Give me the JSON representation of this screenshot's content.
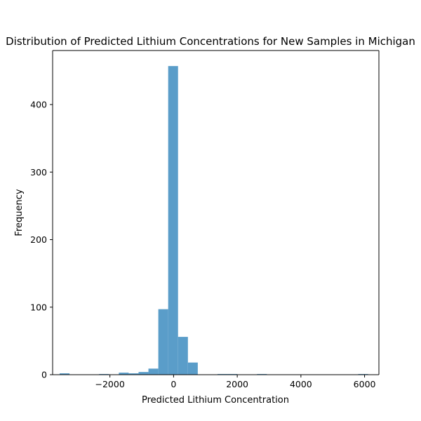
{
  "chart_data": {
    "type": "bar",
    "title": "Distribution of Predicted Lithium Concentrations for New Samples in Michigan",
    "xlabel": "Predicted Lithium Concentration",
    "ylabel": "Frequency",
    "xlim": [
      -3800,
      6450
    ],
    "ylim": [
      0,
      480
    ],
    "xticks": [
      -2000,
      0,
      2000,
      4000,
      6000
    ],
    "xtick_labels": [
      "−2000",
      "0",
      "2000",
      "4000",
      "6000"
    ],
    "yticks": [
      0,
      100,
      200,
      300,
      400
    ],
    "ytick_labels": [
      "0",
      "100",
      "200",
      "300",
      "400"
    ],
    "bar_color": "#5a9dc9",
    "grid": false,
    "bins": [
      {
        "x0": -3580,
        "x1": -3270,
        "count": 2
      },
      {
        "x0": -2340,
        "x1": -2030,
        "count": 1
      },
      {
        "x0": -1720,
        "x1": -1410,
        "count": 3
      },
      {
        "x0": -1410,
        "x1": -1100,
        "count": 2
      },
      {
        "x0": -1100,
        "x1": -790,
        "count": 4
      },
      {
        "x0": -790,
        "x1": -480,
        "count": 9
      },
      {
        "x0": -480,
        "x1": -170,
        "count": 97
      },
      {
        "x0": -170,
        "x1": 140,
        "count": 457
      },
      {
        "x0": 140,
        "x1": 450,
        "count": 56
      },
      {
        "x0": 450,
        "x1": 760,
        "count": 18
      },
      {
        "x0": 1380,
        "x1": 1690,
        "count": 1
      },
      {
        "x0": 1690,
        "x1": 2000,
        "count": 1
      },
      {
        "x0": 2620,
        "x1": 2930,
        "count": 1
      },
      {
        "x0": 5800,
        "x1": 6110,
        "count": 1
      }
    ]
  }
}
